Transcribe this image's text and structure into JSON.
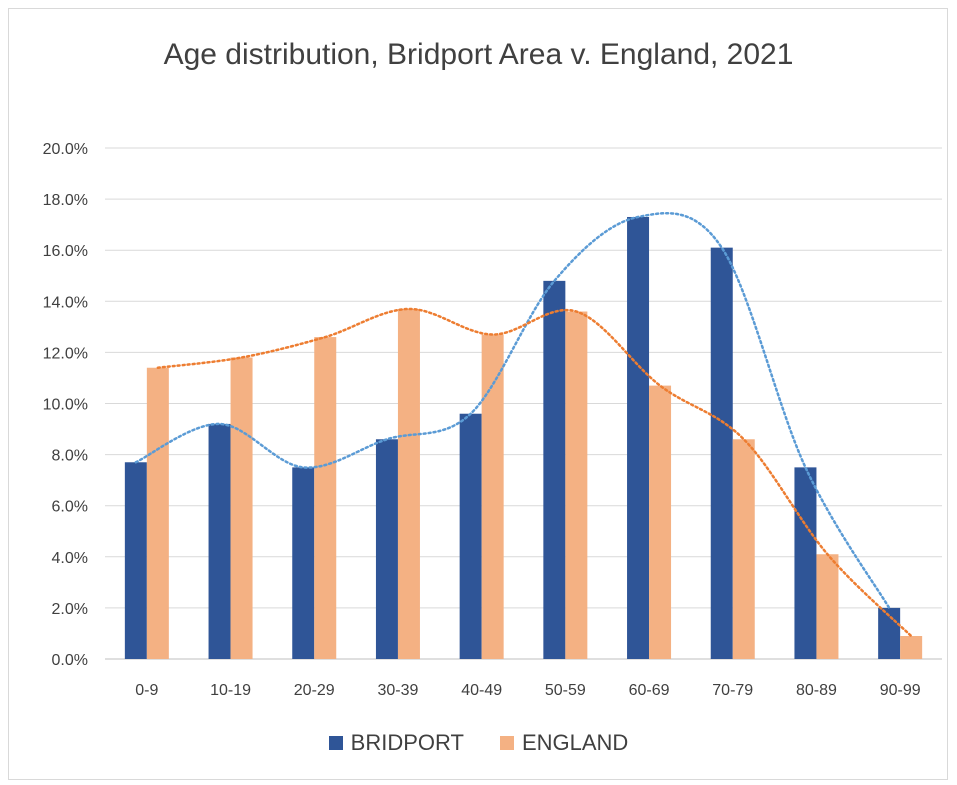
{
  "chart_data": {
    "type": "bar",
    "title": "Age distribution, Bridport Area v. England, 2021",
    "categories": [
      "0-9",
      "10-19",
      "20-29",
      "30-39",
      "40-49",
      "50-59",
      "60-69",
      "70-79",
      "80-89",
      "90-99"
    ],
    "series": [
      {
        "name": "BRIDPORT",
        "color": "#2f5597",
        "values": [
          7.7,
          9.2,
          7.5,
          8.6,
          9.6,
          14.8,
          17.3,
          16.1,
          7.5,
          2.0
        ]
      },
      {
        "name": "ENGLAND",
        "color": "#f4b183",
        "values": [
          11.4,
          11.8,
          12.6,
          13.7,
          12.7,
          13.6,
          10.7,
          8.6,
          4.1,
          0.9
        ]
      }
    ],
    "trendlines": [
      {
        "series": "BRIDPORT",
        "style": "dotted",
        "color": "#5b9bd5"
      },
      {
        "series": "ENGLAND",
        "style": "dotted",
        "color": "#ed7d31"
      }
    ],
    "ylim": [
      0,
      20
    ],
    "yticks": [
      "0.0%",
      "2.0%",
      "4.0%",
      "6.0%",
      "8.0%",
      "10.0%",
      "12.0%",
      "14.0%",
      "16.0%",
      "18.0%",
      "20.0%"
    ],
    "grid": true,
    "legend_position": "bottom",
    "xlabel": "",
    "ylabel": ""
  }
}
